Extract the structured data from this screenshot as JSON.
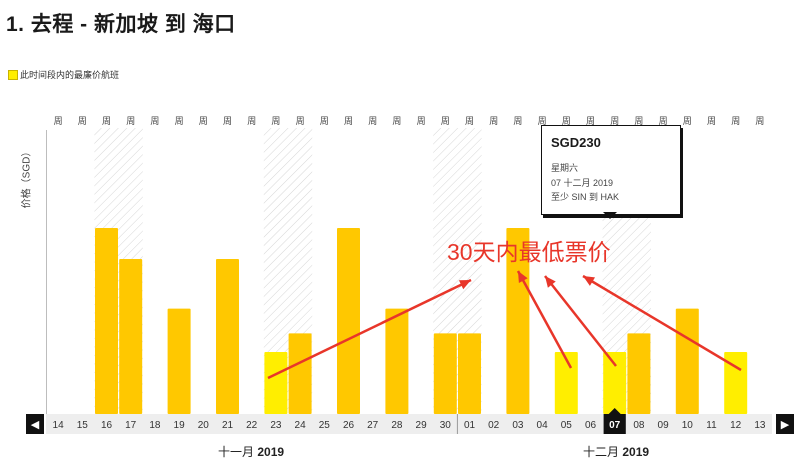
{
  "title": "1. 去程 - 新加坡 到 海口",
  "legend_label": "此时间段内的最廉价航班",
  "y_axis_label": "价格（SGD）",
  "week_marker": "周",
  "annotation": "30天内最低票价",
  "tooltip": {
    "price": "SGD230",
    "weekday": "星期六",
    "date": "07 十二月 2019",
    "route": "至少 SIN 到 HAK"
  },
  "nav": {
    "prev_icon": "chevron-left-icon",
    "next_icon": "chevron-right-icon"
  },
  "months": [
    {
      "name": "十一月",
      "year": "2019"
    },
    {
      "name": "十二月",
      "year": "2019"
    }
  ],
  "colors": {
    "bar": "#ffc800",
    "bar_cheapest": "#ffee00",
    "selected": "#111111",
    "annotation": "#e8362a"
  },
  "chart_data": {
    "type": "bar",
    "categories": [
      "14",
      "15",
      "16",
      "17",
      "18",
      "19",
      "20",
      "21",
      "22",
      "23",
      "24",
      "25",
      "26",
      "27",
      "28",
      "29",
      "30",
      "01",
      "02",
      "03",
      "04",
      "05",
      "06",
      "07",
      "08",
      "09",
      "10",
      "11",
      "12",
      "13"
    ],
    "values": [
      null,
      null,
      3,
      2.5,
      null,
      1.7,
      null,
      2.5,
      null,
      1,
      1.3,
      null,
      3,
      null,
      1.7,
      null,
      1.3,
      1.3,
      null,
      3,
      null,
      1,
      null,
      1,
      1.3,
      null,
      1.7,
      null,
      1,
      null
    ],
    "cheapest": [
      "23",
      "05",
      "07",
      "12"
    ],
    "selected": "07",
    "weekend_shaded": [
      "16",
      "17",
      "23",
      "24",
      "30",
      "01",
      "07",
      "08"
    ]
  }
}
